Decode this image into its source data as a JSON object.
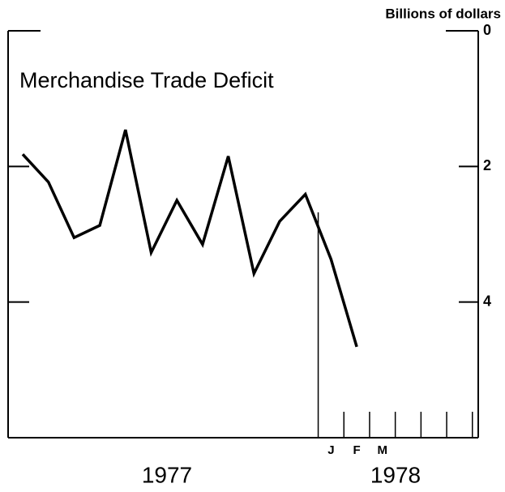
{
  "chart_data": {
    "type": "line",
    "title": "Merchandise Trade Deficit",
    "y_axis_label": "Billions of dollars",
    "year_labels": [
      "1977",
      "1978"
    ],
    "categories": [
      null,
      null,
      null,
      null,
      null,
      null,
      null,
      null,
      null,
      null,
      null,
      null,
      "J",
      "F",
      "M",
      null,
      null,
      null
    ],
    "values": [
      1.82,
      2.23,
      3.05,
      2.87,
      1.46,
      3.27,
      2.5,
      3.15,
      1.85,
      3.58,
      2.81,
      2.41,
      3.37,
      4.66,
      null,
      null,
      null,
      null
    ],
    "color": "#000000",
    "ylim": [
      0,
      6
    ],
    "yticks": [
      0,
      2,
      4
    ],
    "y_inverted": true
  }
}
